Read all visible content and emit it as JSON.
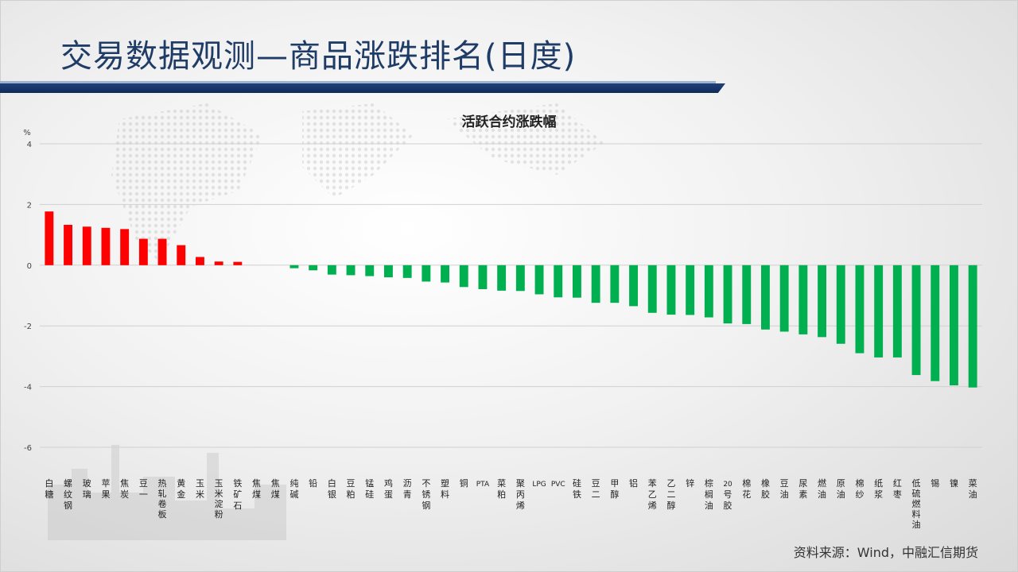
{
  "page": {
    "title": "交易数据观测—商品涨跌排名(日度)",
    "source": "资料来源：Wind，中融汇信期货"
  },
  "colors": {
    "up": "#ff0000",
    "down": "#00b050",
    "title": "#1f3c67"
  },
  "chart_data": {
    "type": "bar",
    "title": "活跃合约涨跌幅",
    "ylabel": "%",
    "ylim": [
      -6,
      4
    ],
    "yticks": [
      4,
      2,
      0,
      -2,
      -4,
      -6
    ],
    "grid": true,
    "categories": [
      "白糖",
      "螺纹钢",
      "玻璃",
      "苹果",
      "焦炭",
      "豆一",
      "热轧卷板",
      "黄金",
      "玉米",
      "玉米淀粉",
      "铁矿石",
      "焦煤",
      "焦煤",
      "纯碱",
      "铅",
      "白银",
      "豆粕",
      "锰硅",
      "鸡蛋",
      "沥青",
      "不锈钢",
      "塑料",
      "铜",
      "PTA",
      "菜粕",
      "聚丙烯",
      "LPG",
      "PVC",
      "硅铁",
      "豆二",
      "甲醇",
      "铝",
      "苯乙烯",
      "乙二醇",
      "锌",
      "棕榈油",
      "20号胶",
      "棉花",
      "橡胶",
      "豆油",
      "尿素",
      "燃油",
      "原油",
      "棉纱",
      "纸浆",
      "红枣",
      "低硫燃料油",
      "锡",
      "镍",
      "菜油"
    ],
    "values": [
      1.77,
      1.33,
      1.27,
      1.23,
      1.19,
      0.87,
      0.87,
      0.66,
      0.27,
      0.12,
      0.11,
      0,
      0,
      -0.1,
      -0.17,
      -0.31,
      -0.33,
      -0.36,
      -0.4,
      -0.42,
      -0.54,
      -0.57,
      -0.72,
      -0.79,
      -0.84,
      -0.85,
      -0.96,
      -1.06,
      -1.07,
      -1.24,
      -1.24,
      -1.35,
      -1.57,
      -1.63,
      -1.64,
      -1.72,
      -1.92,
      -1.94,
      -2.12,
      -2.19,
      -2.28,
      -2.37,
      -2.59,
      -2.9,
      -3.04,
      -3.04,
      -3.62,
      -3.82,
      -3.96,
      -4.03
    ]
  }
}
